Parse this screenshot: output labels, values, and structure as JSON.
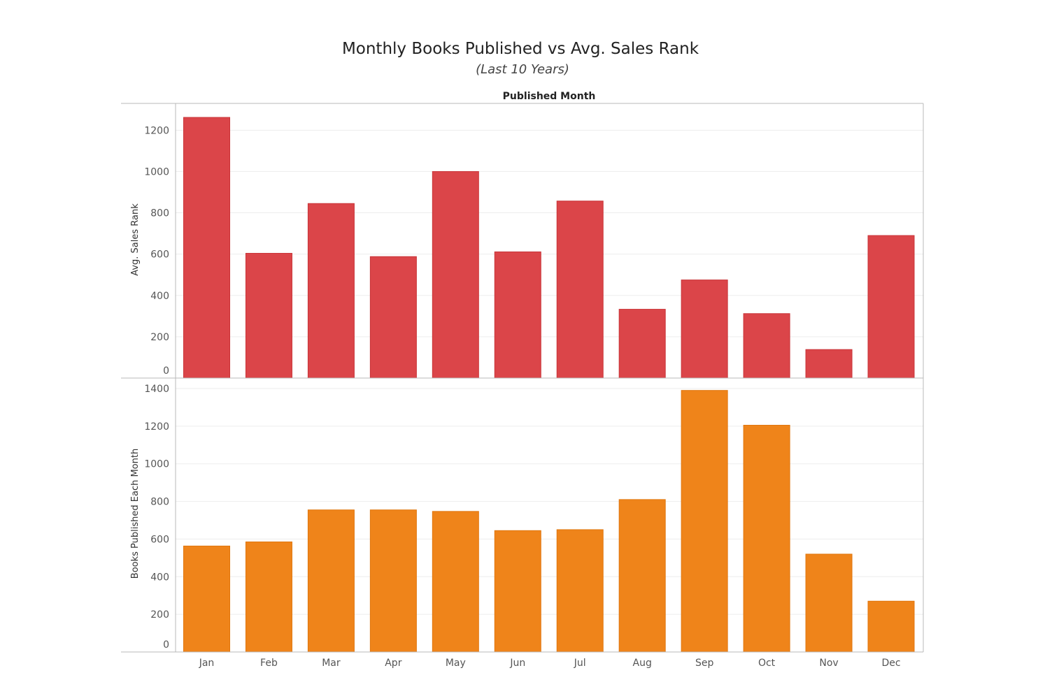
{
  "title": "Monthly Books Published vs Avg. Sales Rank",
  "subtitle": "(Last 10 Years)",
  "column_header": "Published Month",
  "colors": {
    "top_series": "#db4549",
    "bottom_series": "#ef841a"
  },
  "chart_data": {
    "type": "bar",
    "title": "Monthly Books Published vs Avg. Sales Rank",
    "subtitle": "(Last 10 Years)",
    "xlabel": "Published Month",
    "categories": [
      "Jan",
      "Feb",
      "Mar",
      "Apr",
      "May",
      "Jun",
      "Jul",
      "Aug",
      "Sep",
      "Oct",
      "Nov",
      "Dec"
    ],
    "grid": true,
    "panels": [
      {
        "name": "Avg. Sales Rank",
        "ylabel": "Avg. Sales Rank",
        "ylim": [
          0,
          1250
        ],
        "yticks": [
          0,
          200,
          400,
          600,
          800,
          1000,
          1200
        ],
        "values": [
          1262,
          604,
          845,
          588,
          1000,
          611,
          857,
          333,
          475,
          312,
          138,
          690
        ]
      },
      {
        "name": "Books Published Each Month",
        "ylabel": "Books Published Each Month",
        "ylim": [
          0,
          1400
        ],
        "yticks": [
          0,
          200,
          400,
          600,
          800,
          1000,
          1200,
          1400
        ],
        "values": [
          563,
          585,
          755,
          755,
          747,
          645,
          650,
          810,
          1390,
          1205,
          520,
          270
        ]
      }
    ]
  }
}
